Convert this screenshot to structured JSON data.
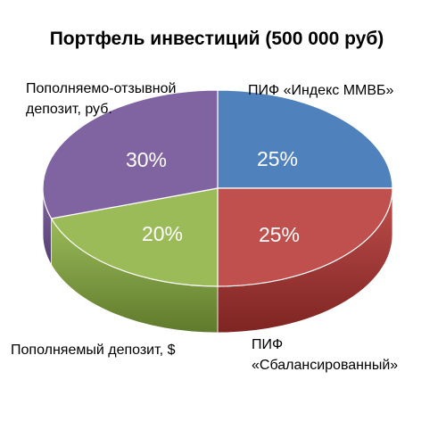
{
  "chart_data": {
    "type": "pie",
    "title": "Портфель инвестиций (500 000 руб)",
    "slices": [
      {
        "label": "ПИФ «Индекс ММВБ»",
        "label_lines": [
          "ПИФ «Индекс ММВБ»"
        ],
        "value": 25,
        "value_label": "25%",
        "color": "#4F81BD",
        "side_color": "#2F5486"
      },
      {
        "label": "ПИФ «Сбалансированный»",
        "label_lines": [
          "ПИФ",
          "«Сбалансированный»"
        ],
        "value": 25,
        "value_label": "25%",
        "color": "#C0504D",
        "side_color": "#7E2422"
      },
      {
        "label": "Пополняемый депозит, $",
        "label_lines": [
          "Пополняемый депозит, $"
        ],
        "value": 20,
        "value_label": "20%",
        "color": "#9BBB59",
        "side_color": "#5F7A2C"
      },
      {
        "label": "Пополняемо-отзывной депозит, руб.",
        "label_lines": [
          "Пополняемо-отзывной",
          "депозит, руб."
        ],
        "value": 30,
        "value_label": "30%",
        "color": "#8064A2",
        "side_color": "#533F6E"
      }
    ],
    "legend": "none",
    "style": "3d"
  }
}
